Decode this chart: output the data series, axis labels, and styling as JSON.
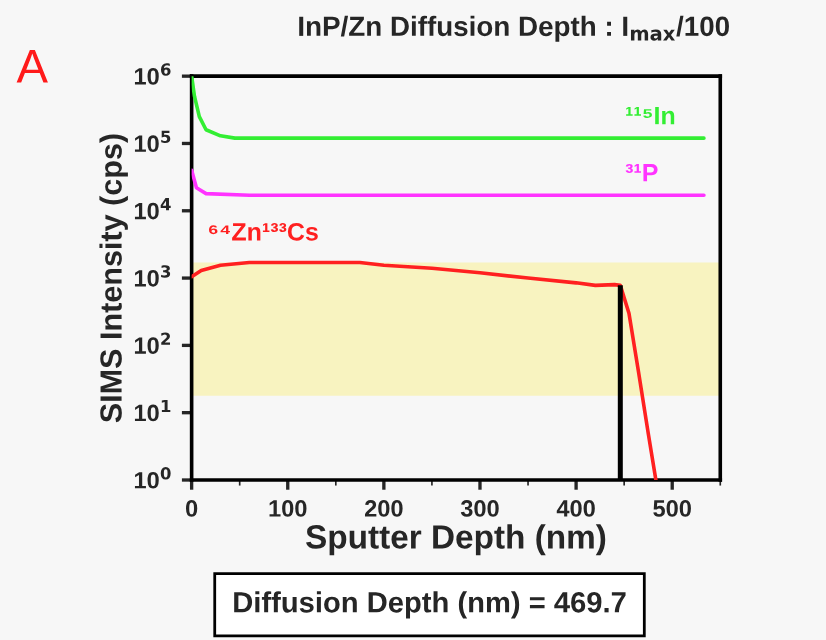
{
  "chart_data": {
    "type": "line",
    "title": "InP/Zn Diffusion Depth : I$_{max}$/100",
    "xlabel": "Sputter Depth (nm)",
    "ylabel": "SIMS Intensity (cps)",
    "log": "y",
    "xlim": [
      0,
      550
    ],
    "ylim": [
      1,
      1000000
    ],
    "xticks": [
      0,
      100,
      200,
      300,
      400,
      500
    ],
    "yticks": [
      {
        "value": 1,
        "label": "10$^{0}$"
      },
      {
        "value": 10,
        "label": "10$^{1}$"
      },
      {
        "value": 100,
        "label": "10$^{2}$"
      },
      {
        "value": 1000,
        "label": "10$^{3}$"
      },
      {
        "value": 10000,
        "label": "10$^{4}$"
      },
      {
        "value": 100000,
        "label": "10$^{5}$"
      },
      {
        "value": 1000000,
        "label": "10$^{6}$"
      }
    ],
    "grid": false,
    "line_style": "solid",
    "marker": "none",
    "series": [
      {
        "name": "¹¹⁵In",
        "color": "#33ee33",
        "x": [
          0,
          3,
          8,
          15,
          30,
          45,
          533
        ],
        "values": [
          1000000,
          500000,
          250000,
          160000,
          130000,
          120000,
          120000
        ]
      },
      {
        "name": "³¹P",
        "color": "#ff33ff",
        "x": [
          0,
          5,
          15,
          60,
          533
        ],
        "values": [
          40000,
          22000,
          18000,
          17000,
          17000
        ]
      },
      {
        "name": "⁶⁴Zn¹³³Cs",
        "color": "#ff2020",
        "x": [
          0,
          10,
          30,
          60,
          100,
          150,
          175,
          200,
          250,
          300,
          350,
          400,
          420,
          440,
          446,
          455,
          465,
          475,
          483
        ],
        "values": [
          1050,
          1300,
          1550,
          1700,
          1700,
          1700,
          1700,
          1550,
          1400,
          1200,
          1000,
          850,
          780,
          800,
          780,
          300,
          40,
          5,
          1
        ]
      }
    ],
    "bands": [
      {
        "axis": "y",
        "from": 17.8,
        "to": 1700,
        "color": "#f8f3c0"
      }
    ],
    "ref_lines": [
      {
        "axis": "x",
        "value": 446,
        "color": "#000000"
      }
    ],
    "annotations": [
      "A",
      "Diffusion Depth (nm) = 469.7"
    ]
  }
}
